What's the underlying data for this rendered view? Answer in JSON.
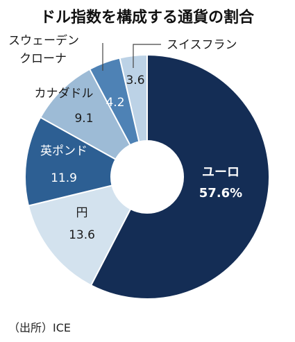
{
  "chart_data": {
    "type": "pie",
    "donut": true,
    "title": "ドル指数を構成する通貨の割合",
    "unit": "%",
    "slices": [
      {
        "name": "ユーロ",
        "value": 57.6,
        "value_label": "57.6%",
        "color": "#142d55"
      },
      {
        "name": "円",
        "value": 13.6,
        "value_label": "13.6",
        "color": "#d3e2ee"
      },
      {
        "name": "英ポンド",
        "value": 11.9,
        "value_label": "11.9",
        "color": "#2d5f93"
      },
      {
        "name": "カナダドル",
        "value": 9.1,
        "value_label": "9.1",
        "color": "#9dbbd6"
      },
      {
        "name": "スウェーデンクローナ",
        "value": 4.2,
        "value_label": "4.2",
        "color": "#4e82b5"
      },
      {
        "name": "スイスフラン",
        "value": 3.6,
        "value_label": "3.6",
        "color": "#bcd2e6"
      }
    ],
    "legend": "none"
  },
  "labels": {
    "euro_name": "ユーロ",
    "yen_name": "円",
    "gbp_name": "英ポンド",
    "cad_name": "カナダドル",
    "sek_line1": "スウェーデン",
    "sek_line2": "クローナ",
    "chf_name": "スイスフラン"
  },
  "source": "（出所）ICE"
}
